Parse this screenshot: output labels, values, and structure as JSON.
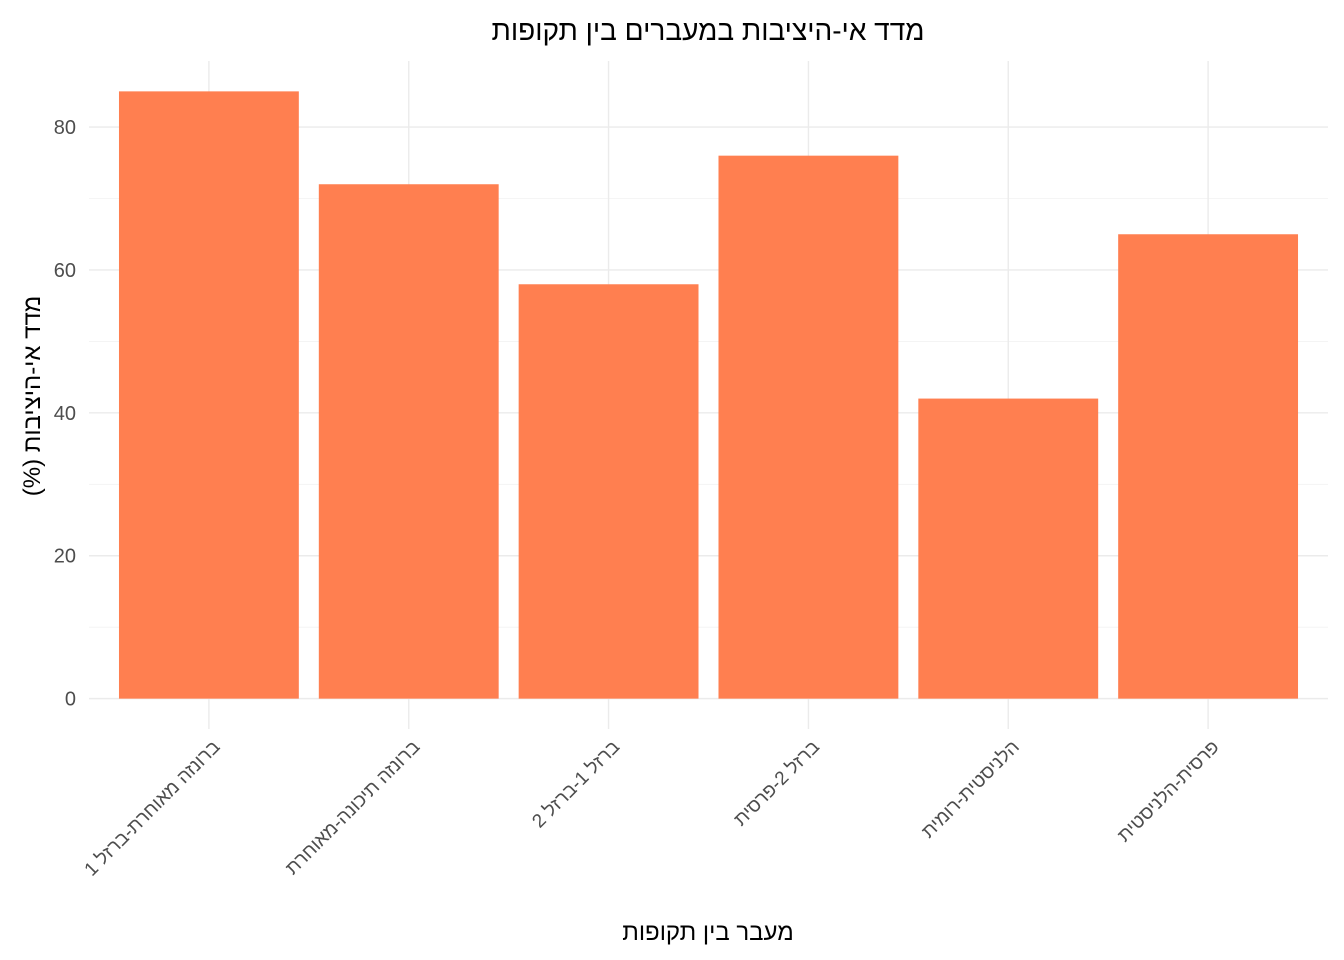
{
  "chart_data": {
    "type": "bar",
    "title": "מדד אי-היציבות במעברים בין תקופות",
    "xlabel": "מעבר בין תקופות",
    "ylabel": "מדד אי-היציבות (%)",
    "categories": [
      "ברונזה מאוחרת-ברזל 1",
      "ברונזה תיכונה-מאוחרת",
      "ברזל 1-ברזל 2",
      "ברזל 2-פרסית",
      "הלניסטית-רומית",
      "פרסית-הלניסטית"
    ],
    "values": [
      85,
      72,
      58,
      76,
      42,
      65
    ],
    "ylim": [
      -4.25,
      89.25
    ],
    "yticks": [
      0,
      20,
      40,
      60,
      80
    ],
    "bar_color": "#FF7F50",
    "grid": true,
    "legend": "none"
  }
}
